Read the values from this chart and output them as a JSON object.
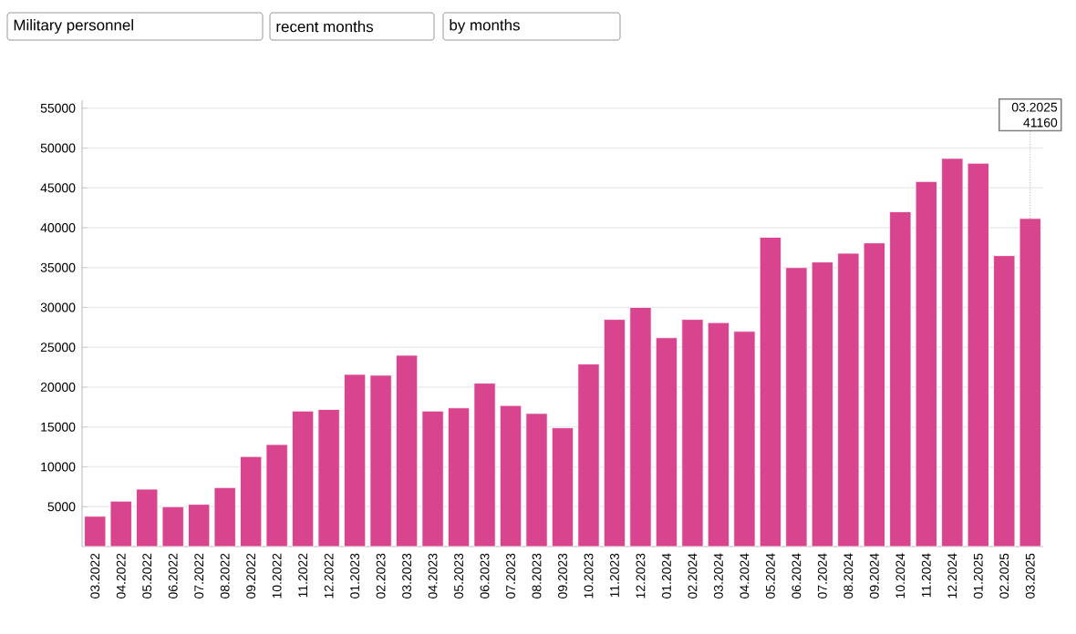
{
  "chart_data": {
    "type": "bar",
    "categories": [
      "03.2022",
      "04.2022",
      "05.2022",
      "06.2022",
      "07.2022",
      "08.2022",
      "09.2022",
      "10.2022",
      "11.2022",
      "12.2022",
      "01.2023",
      "02.2023",
      "03.2023",
      "04.2023",
      "05.2023",
      "06.2023",
      "07.2023",
      "08.2023",
      "09.2023",
      "10.2023",
      "11.2023",
      "12.2023",
      "01.2024",
      "02.2024",
      "03.2024",
      "04.2024",
      "05.2024",
      "06.2024",
      "07.2024",
      "08.2024",
      "09.2024",
      "10.2024",
      "11.2024",
      "12.2024",
      "01.2025",
      "02.2025",
      "03.2025"
    ],
    "values": [
      3800,
      5700,
      7200,
      5000,
      5300,
      7400,
      11300,
      12800,
      17000,
      17200,
      21600,
      21500,
      24000,
      17000,
      17400,
      20500,
      17700,
      16700,
      14900,
      22900,
      28500,
      30000,
      26200,
      28500,
      28100,
      27000,
      38800,
      35000,
      35700,
      36800,
      38100,
      42000,
      45800,
      48700,
      48100,
      36500,
      41160
    ],
    "color": "#d9448e",
    "ylim": [
      0,
      56000
    ],
    "yticks": [
      5000,
      10000,
      15000,
      20000,
      25000,
      30000,
      35000,
      40000,
      45000,
      50000,
      55000
    ],
    "grid": "y",
    "annotations": [
      "Military personnel",
      "recent months",
      "by months",
      {
        "text": "03.2025 41160",
        "x": "03.2025",
        "y": 41160
      }
    ]
  }
}
